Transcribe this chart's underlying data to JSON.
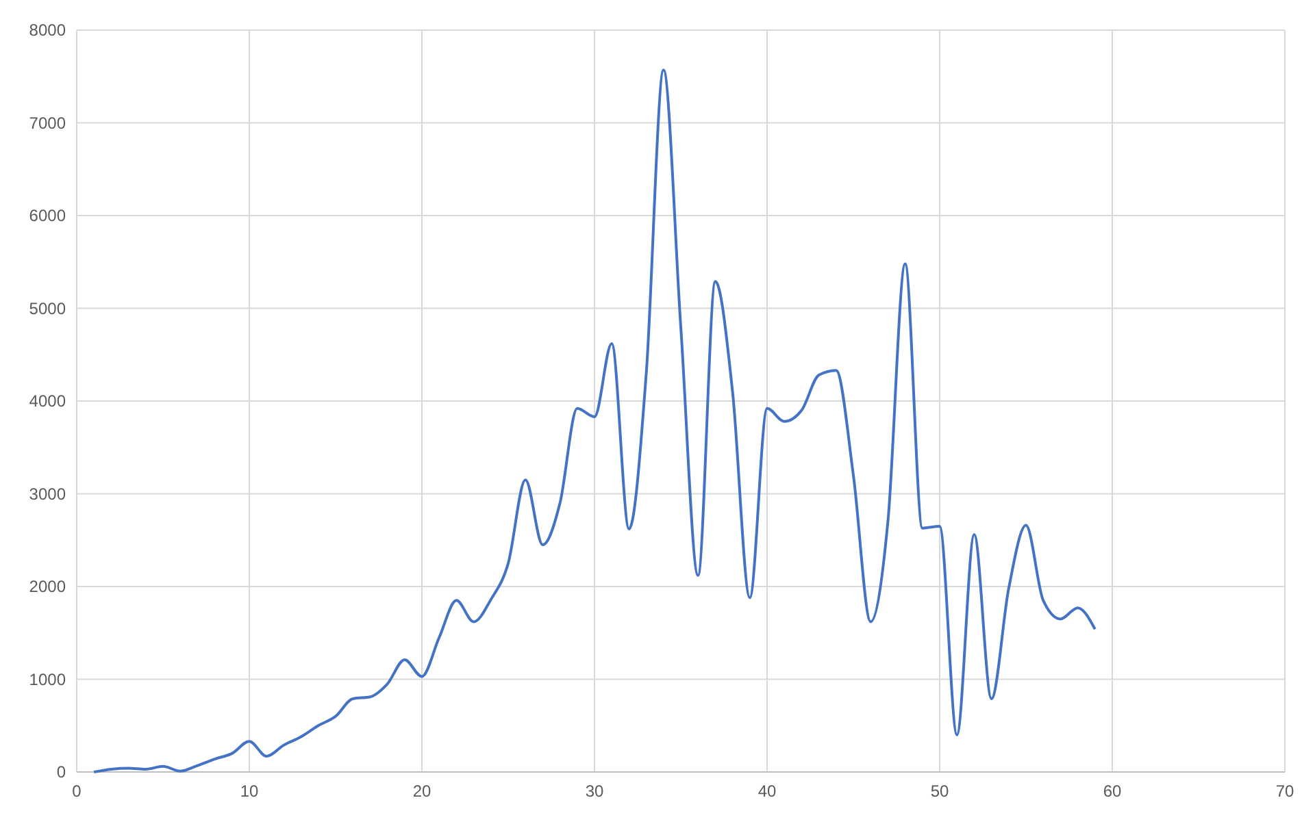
{
  "chart_data": {
    "type": "line",
    "x": [
      1,
      2,
      3,
      4,
      5,
      6,
      7,
      8,
      9,
      10,
      11,
      12,
      13,
      14,
      15,
      16,
      17,
      18,
      19,
      20,
      21,
      22,
      23,
      24,
      25,
      26,
      27,
      28,
      29,
      30,
      31,
      32,
      33,
      34,
      35,
      36,
      37,
      38,
      39,
      40,
      41,
      42,
      43,
      44,
      45,
      46,
      47,
      48,
      49,
      50,
      51,
      52,
      53,
      54,
      55,
      56,
      57,
      58,
      59
    ],
    "series": [
      {
        "color": "#4472c4",
        "values": [
          0,
          30,
          40,
          30,
          60,
          10,
          70,
          140,
          200,
          330,
          170,
          290,
          380,
          500,
          600,
          790,
          810,
          950,
          1210,
          1030,
          1450,
          1850,
          1620,
          1860,
          2250,
          3150,
          2450,
          2900,
          3920,
          3830,
          4620,
          2620,
          4300,
          7570,
          4800,
          2120,
          5290,
          4100,
          1880,
          3920,
          3780,
          3900,
          4280,
          4330,
          3200,
          1620,
          2700,
          5480,
          2630,
          2650,
          400,
          2560,
          790,
          1980,
          2660,
          1850,
          1650,
          1770,
          1540
        ]
      }
    ],
    "xlim": [
      0,
      70
    ],
    "xticks": [
      0,
      10,
      20,
      30,
      40,
      50,
      60,
      70
    ],
    "ylim": [
      0,
      8000
    ],
    "yticks": [
      0,
      1000,
      2000,
      3000,
      4000,
      5000,
      6000,
      7000,
      8000
    ],
    "grid": true,
    "marker": "none",
    "line_style": "solid"
  }
}
